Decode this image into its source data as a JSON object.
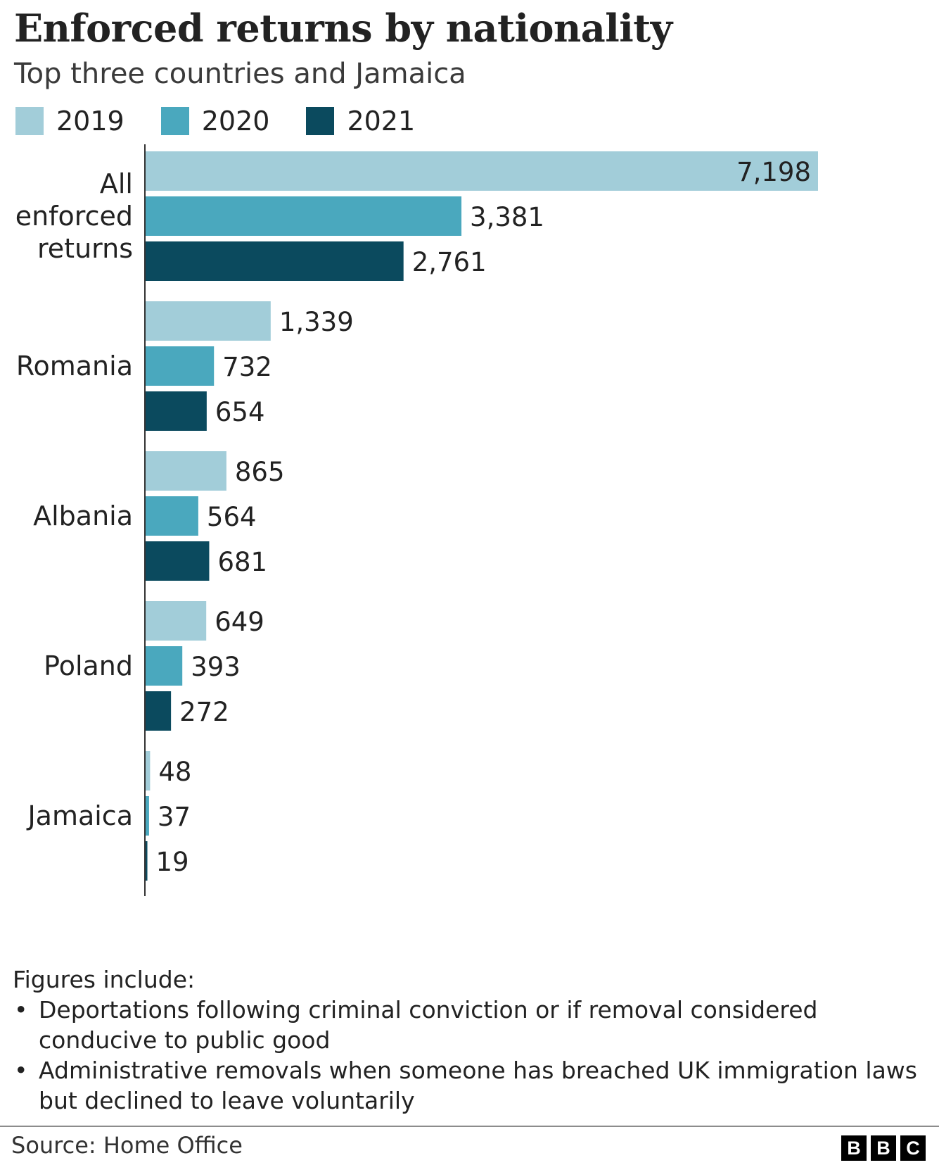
{
  "header": {
    "title": "Enforced returns by nationality",
    "subtitle": "Top three countries and Jamaica"
  },
  "legend": [
    {
      "label": "2019",
      "color": "#a2cdd9"
    },
    {
      "label": "2020",
      "color": "#4aa8be"
    },
    {
      "label": "2021",
      "color": "#0b4a5e"
    }
  ],
  "chart_data": {
    "type": "bar",
    "orientation": "horizontal",
    "title": "Enforced returns by nationality",
    "subtitle": "Top three countries and Jamaica",
    "categories": [
      [
        "All",
        "enforced",
        "returns"
      ],
      [
        "Romania"
      ],
      [
        "Albania"
      ],
      [
        "Poland"
      ],
      [
        "Jamaica"
      ]
    ],
    "series": [
      {
        "name": "2019",
        "color": "#a2cdd9",
        "values": [
          7198,
          1339,
          865,
          649,
          48
        ],
        "labels": [
          "7,198",
          "1,339",
          "865",
          "649",
          "48"
        ]
      },
      {
        "name": "2020",
        "color": "#4aa8be",
        "values": [
          3381,
          732,
          564,
          393,
          37
        ],
        "labels": [
          "3,381",
          "732",
          "564",
          "393",
          "37"
        ]
      },
      {
        "name": "2021",
        "color": "#0b4a5e",
        "values": [
          2761,
          654,
          681,
          272,
          19
        ],
        "labels": [
          "2,761",
          "654",
          "681",
          "272",
          "19"
        ]
      }
    ],
    "xlim": [
      0,
      7198
    ],
    "grid": false,
    "legend_position": "top-left"
  },
  "notes": {
    "heading": "Figures include:",
    "items": [
      "Deportations following criminal conviction or if removal considered conducive to public good",
      "Administrative removals when someone has breached UK immigration laws but declined to leave voluntarily"
    ]
  },
  "footer": {
    "source": "Source: Home Office",
    "logo": [
      "B",
      "B",
      "C"
    ]
  }
}
